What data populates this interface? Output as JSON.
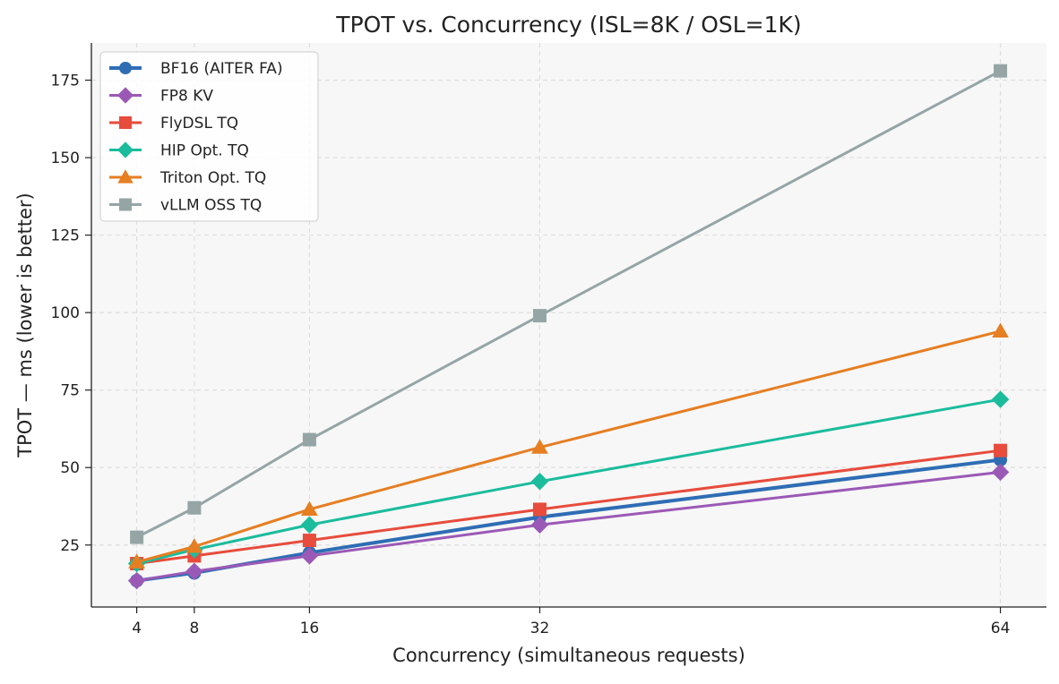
{
  "chart_data": {
    "type": "line",
    "title": "TPOT vs. Concurrency  (ISL=8K / OSL=1K)",
    "xlabel": "Concurrency (simultaneous requests)",
    "ylabel": "TPOT — ms  (lower is better)",
    "x": [
      4,
      8,
      16,
      32,
      64
    ],
    "xticks": [
      "4",
      "8",
      "16",
      "32",
      "64"
    ],
    "yticks": [
      25,
      50,
      75,
      100,
      125,
      150,
      175
    ],
    "xlim": [
      0.85,
      67.2
    ],
    "ylim": [
      5,
      187
    ],
    "grid": true,
    "legend_position": "top-left",
    "series": [
      {
        "name": "BF16 (AITER FA)",
        "values": [
          13.5,
          16.0,
          22.5,
          34.0,
          52.5
        ],
        "color": "#2e6db4",
        "marker": "circle"
      },
      {
        "name": "FP8 KV",
        "values": [
          13.5,
          16.5,
          21.5,
          31.5,
          48.5
        ],
        "color": "#9b59b6",
        "marker": "diamond"
      },
      {
        "name": "FlyDSL TQ",
        "values": [
          19.0,
          21.5,
          26.5,
          36.5,
          55.5
        ],
        "color": "#e74c3c",
        "marker": "square"
      },
      {
        "name": "HIP Opt. TQ",
        "values": [
          19.0,
          23.5,
          31.5,
          45.5,
          72.0
        ],
        "color": "#1abc9c",
        "marker": "diamond"
      },
      {
        "name": "Triton Opt. TQ",
        "values": [
          19.5,
          24.5,
          36.5,
          56.5,
          94.0
        ],
        "color": "#e67e22",
        "marker": "triangle"
      },
      {
        "name": "vLLM OSS TQ",
        "values": [
          27.5,
          37.0,
          59.0,
          99.0,
          178.0
        ],
        "color": "#95a5a6",
        "marker": "square"
      }
    ]
  }
}
